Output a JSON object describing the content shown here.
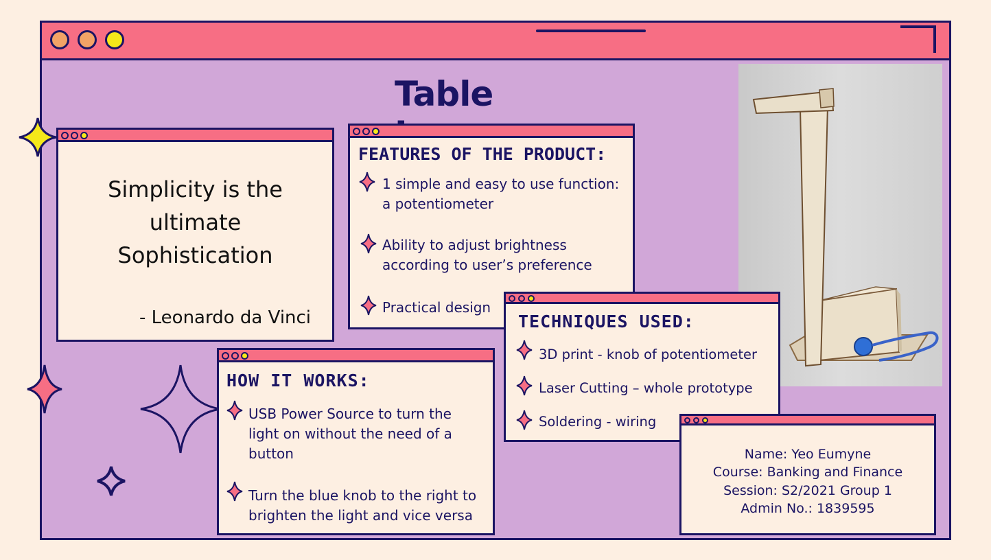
{
  "title": "Table Lamp",
  "quote": {
    "lines": [
      "Simplicity is the",
      "ultimate",
      "Sophistication"
    ],
    "author": "- Leonardo da Vinci"
  },
  "features": {
    "heading": "FEATURES OF THE PRODUCT:",
    "items": [
      {
        "lines": [
          "1 simple and easy to use function:",
          "a potentiometer"
        ]
      },
      {
        "lines": [
          "Ability to adjust brightness",
          "according to user’s preference"
        ]
      },
      {
        "lines": [
          "Practical design"
        ]
      }
    ]
  },
  "techniques": {
    "heading": "TECHNIQUES USED:",
    "items": [
      {
        "text": "3D print - knob of potentiometer"
      },
      {
        "text": "Laser Cutting – whole prototype"
      },
      {
        "text": "Soldering - wiring"
      }
    ]
  },
  "how_it_works": {
    "heading": "HOW IT WORKS:",
    "items": [
      {
        "lines": [
          "USB Power Source to turn the",
          "light on without the need of a",
          "button"
        ]
      },
      {
        "lines": [
          "Turn the blue knob to the right to",
          "brighten the light and vice versa"
        ]
      }
    ]
  },
  "info": {
    "name": "Name: Yeo Eumyne",
    "course": "Course: Banking and Finance",
    "session": "Session: S2/2021 Group 1",
    "admin": "Admin No.: 1839595"
  },
  "colors": {
    "background": "#fdefe2",
    "frame": "#d1a7d8",
    "accent_pink": "#f76e84",
    "navy": "#1b1463",
    "yellow": "#f5e81a",
    "orange": "#f3a366"
  },
  "icons": {
    "bullet": "sparkle-icon",
    "decor": [
      "yellow-sparkle-icon",
      "pink-sparkle-icon",
      "outline-sparkle-icon",
      "small-sparkle-icon"
    ]
  }
}
